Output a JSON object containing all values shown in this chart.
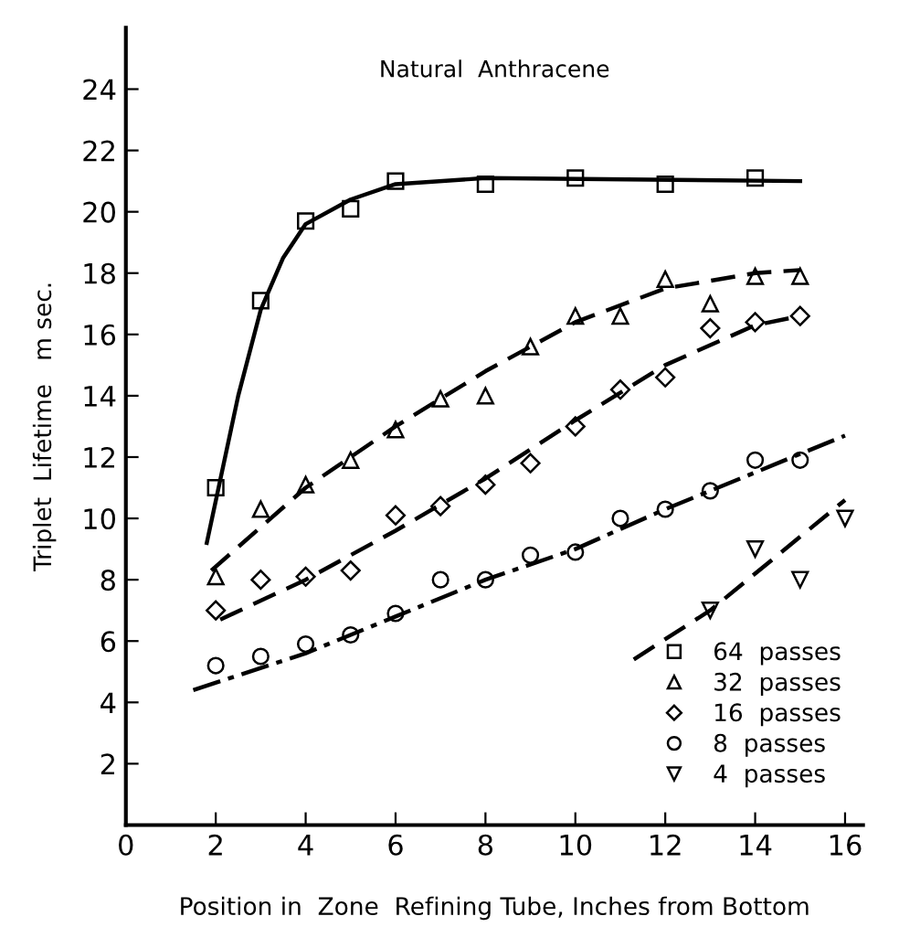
{
  "chart_data": {
    "type": "scatter",
    "title": "Natural  Anthracene",
    "xlabel": "Position in  Zone  Refining Tube, Inches from Bottom",
    "ylabel": "Triplet  Lifetime   m sec.",
    "xlim": [
      0,
      16.4
    ],
    "ylim": [
      0,
      26
    ],
    "xticks": [
      0,
      2,
      4,
      6,
      8,
      10,
      12,
      14,
      16
    ],
    "yticks": [
      2,
      4,
      6,
      8,
      10,
      12,
      14,
      16,
      18,
      20,
      22,
      24
    ],
    "grid": false,
    "legend": "bottom right",
    "series": [
      {
        "name": "64  passes",
        "color": "#000000",
        "marker": "square",
        "x": [
          2,
          3,
          4,
          5,
          6,
          8,
          10,
          12,
          14
        ],
        "values": [
          11,
          17.1,
          19.7,
          20.1,
          21,
          20.9,
          21.1,
          20.9,
          21.1
        ]
      },
      {
        "name": "32  passes",
        "color": "#000000",
        "marker": "triangle",
        "x": [
          2,
          3,
          4,
          5,
          6,
          7,
          8,
          9,
          10,
          11,
          12,
          13,
          14,
          15
        ],
        "values": [
          8.1,
          10.3,
          11.1,
          11.9,
          12.9,
          13.9,
          14,
          15.6,
          16.6,
          16.6,
          17.8,
          17,
          17.9,
          17.9
        ]
      },
      {
        "name": "16  passes",
        "color": "#000000",
        "marker": "diamond",
        "x": [
          2,
          3,
          4,
          5,
          6,
          7,
          8,
          9,
          10,
          11,
          12,
          13,
          14,
          15
        ],
        "values": [
          7,
          8,
          8.1,
          8.3,
          10.1,
          10.4,
          11.1,
          11.8,
          13,
          14.2,
          14.6,
          16.2,
          16.4,
          16.6
        ]
      },
      {
        "name": "8  passes",
        "color": "#000000",
        "marker": "circle",
        "x": [
          2,
          3,
          4,
          5,
          6,
          7,
          8,
          9,
          10,
          11,
          12,
          13,
          14,
          15
        ],
        "values": [
          5.2,
          5.5,
          5.9,
          6.2,
          6.9,
          8,
          8,
          8.8,
          8.9,
          10,
          10.3,
          10.9,
          11.9,
          11.9
        ]
      },
      {
        "name": "4  passes",
        "color": "#000000",
        "marker": "triangle_down",
        "x": [
          13,
          14,
          15,
          16
        ],
        "values": [
          7,
          9,
          8,
          10
        ]
      },
      {
        "type": "line",
        "color": "#000000",
        "line_style": "solid",
        "x": [
          1.8,
          2.5,
          3,
          3.5,
          4,
          5,
          6,
          8,
          15
        ],
        "values": [
          9.2,
          14,
          16.8,
          18.5,
          19.6,
          20.4,
          20.9,
          21.1,
          21
        ]
      },
      {
        "type": "line",
        "color": "#000000",
        "line_style": "dashed",
        "x": [
          1.9,
          4,
          6,
          8,
          10,
          12,
          14,
          15
        ],
        "values": [
          8.3,
          11,
          13,
          14.8,
          16.4,
          17.5,
          18,
          18.1
        ]
      },
      {
        "type": "line",
        "color": "#000000",
        "line_style": "dashed",
        "x": [
          2.1,
          4,
          6,
          8,
          10,
          12,
          14,
          15
        ],
        "values": [
          6.7,
          8,
          9.6,
          11.3,
          13.2,
          15,
          16.3,
          16.6
        ]
      },
      {
        "type": "line",
        "color": "#000000",
        "line_style": "dashdot",
        "x": [
          1.5,
          4,
          6,
          8,
          10,
          12,
          14,
          16
        ],
        "values": [
          4.4,
          5.6,
          6.8,
          8,
          9,
          10.3,
          11.5,
          12.7
        ]
      },
      {
        "type": "line",
        "color": "#000000",
        "line_style": "dashed",
        "x": [
          11.3,
          13,
          16
        ],
        "values": [
          5.4,
          7,
          10.6
        ]
      }
    ]
  }
}
